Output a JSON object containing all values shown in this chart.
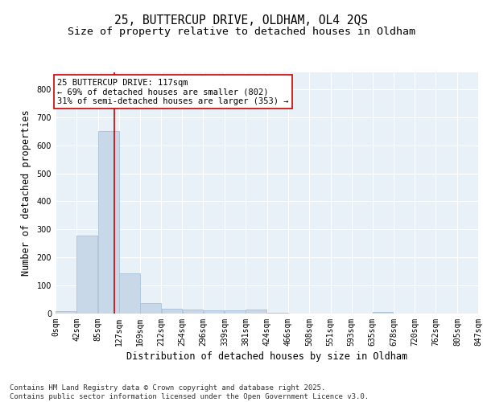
{
  "title_line1": "25, BUTTERCUP DRIVE, OLDHAM, OL4 2QS",
  "title_line2": "Size of property relative to detached houses in Oldham",
  "xlabel": "Distribution of detached houses by size in Oldham",
  "ylabel": "Number of detached properties",
  "bar_color": "#c8d8e8",
  "bar_edge_color": "#a8c0d8",
  "vline_color": "#cc0000",
  "vline_x": 117,
  "annotation_text": "25 BUTTERCUP DRIVE: 117sqm\n← 69% of detached houses are smaller (802)\n31% of semi-detached houses are larger (353) →",
  "annotation_box_color": "#ffffff",
  "annotation_box_edge": "#cc0000",
  "bins": [
    0,
    42,
    85,
    127,
    169,
    212,
    254,
    296,
    339,
    381,
    424,
    466,
    508,
    551,
    593,
    635,
    678,
    720,
    762,
    805,
    847
  ],
  "bin_labels": [
    "0sqm",
    "42sqm",
    "85sqm",
    "127sqm",
    "169sqm",
    "212sqm",
    "254sqm",
    "296sqm",
    "339sqm",
    "381sqm",
    "424sqm",
    "466sqm",
    "508sqm",
    "551sqm",
    "593sqm",
    "635sqm",
    "678sqm",
    "720sqm",
    "762sqm",
    "805sqm",
    "847sqm"
  ],
  "bar_heights": [
    8,
    278,
    650,
    143,
    38,
    18,
    13,
    12,
    12,
    13,
    3,
    0,
    0,
    0,
    0,
    5,
    0,
    0,
    0,
    0
  ],
  "ylim": [
    0,
    860
  ],
  "yticks": [
    0,
    100,
    200,
    300,
    400,
    500,
    600,
    700,
    800
  ],
  "footer_text": "Contains HM Land Registry data © Crown copyright and database right 2025.\nContains public sector information licensed under the Open Government Licence v3.0.",
  "background_color": "#e8f0f8",
  "grid_color": "#ffffff",
  "title_fontsize": 10.5,
  "subtitle_fontsize": 9.5,
  "tick_fontsize": 7,
  "label_fontsize": 8.5,
  "footer_fontsize": 6.5,
  "annotation_fontsize": 7.5
}
